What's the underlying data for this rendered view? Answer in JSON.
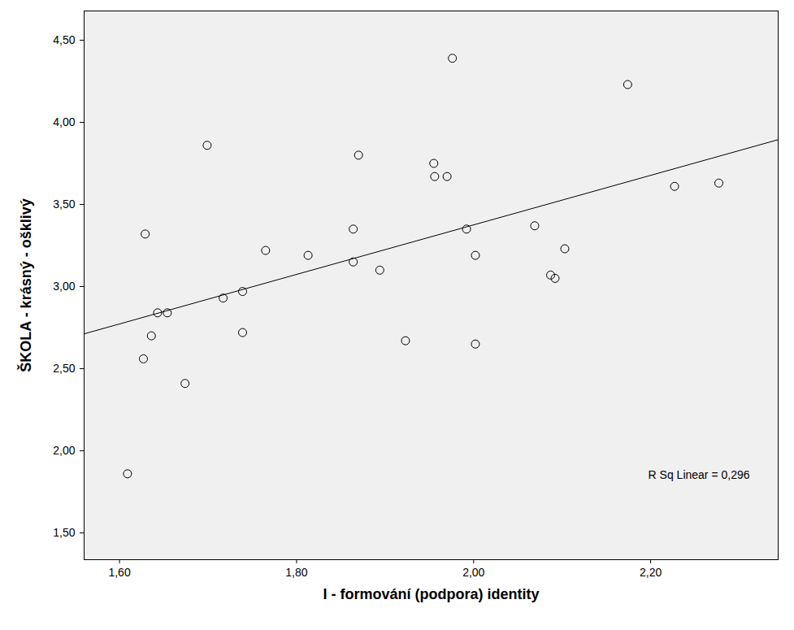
{
  "chart_data": {
    "type": "scatter",
    "x_label": "I - formování (podpora) identity",
    "y_label": "ŠKOLA - krásný - ošklivý",
    "annotation": "R Sq Linear = 0,296",
    "fit_line": true,
    "grid": false,
    "marker": "open_circle",
    "color": "#000000",
    "x": [
      1.609,
      1.627,
      1.629,
      1.636,
      1.643,
      1.654,
      1.674,
      1.699,
      1.717,
      1.739,
      1.739,
      1.765,
      1.813,
      1.864,
      1.864,
      1.87,
      1.894,
      1.923,
      1.955,
      1.956,
      1.97,
      1.976,
      1.992,
      2.002,
      2.002,
      2.069,
      2.087,
      2.092,
      2.103,
      2.174,
      2.227,
      2.277
    ],
    "values": [
      1.86,
      2.56,
      3.32,
      2.7,
      2.84,
      2.84,
      2.41,
      3.86,
      2.93,
      2.97,
      2.72,
      3.22,
      3.19,
      3.35,
      3.15,
      3.8,
      3.1,
      2.67,
      3.75,
      3.67,
      3.67,
      4.39,
      3.35,
      3.19,
      2.65,
      3.37,
      3.07,
      3.05,
      3.23,
      4.23,
      3.61,
      3.63
    ],
    "xlim": [
      1.56,
      2.344
    ],
    "ylim": [
      1.337,
      4.678
    ],
    "xticks": [
      {
        "value": 1.6,
        "label": "1,60"
      },
      {
        "value": 1.8,
        "label": "1,80"
      },
      {
        "value": 2.0,
        "label": "2,00"
      },
      {
        "value": 2.2,
        "label": "2,20"
      }
    ],
    "yticks": [
      {
        "value": 1.5,
        "label": "1,50"
      },
      {
        "value": 2.0,
        "label": "2,00"
      },
      {
        "value": 2.5,
        "label": "2,50"
      },
      {
        "value": 3.0,
        "label": "3,00"
      },
      {
        "value": 3.5,
        "label": "3,50"
      },
      {
        "value": 4.0,
        "label": "4,00"
      },
      {
        "value": 4.5,
        "label": "4,50"
      }
    ]
  }
}
